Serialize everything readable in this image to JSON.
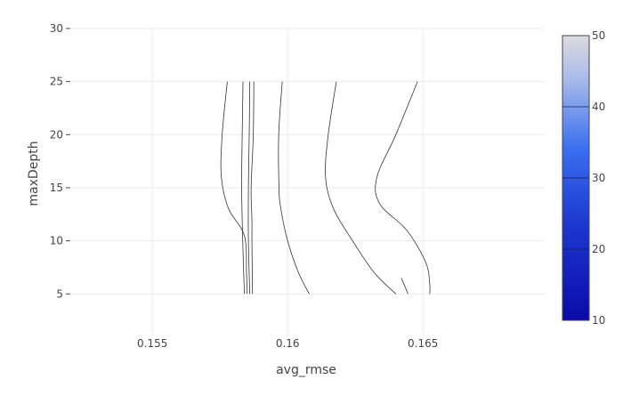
{
  "chart_data": {
    "type": "contour",
    "xlabel": "avg_rmse",
    "ylabel": "maxDepth",
    "xlim": [
      0.152,
      0.1695
    ],
    "ylim": [
      1,
      30
    ],
    "x_ticks": [
      {
        "value": 0.155,
        "label": "0.155"
      },
      {
        "value": 0.16,
        "label": "0.16"
      },
      {
        "value": 0.165,
        "label": "0.165"
      }
    ],
    "y_ticks": [
      {
        "value": 5,
        "label": "5"
      },
      {
        "value": 10,
        "label": "10"
      },
      {
        "value": 15,
        "label": "15"
      },
      {
        "value": 20,
        "label": "20"
      },
      {
        "value": 25,
        "label": "25"
      },
      {
        "value": 30,
        "label": "30"
      }
    ],
    "grid": true,
    "colorbar": {
      "min": 10,
      "max": 50,
      "ticks": [
        10,
        20,
        30,
        40,
        50
      ],
      "colorscale": [
        {
          "stop": 0.0,
          "color": "#0a0aa8"
        },
        {
          "stop": 0.35,
          "color": "#1e3ad0"
        },
        {
          "stop": 0.6,
          "color": "#3a6ef0"
        },
        {
          "stop": 0.85,
          "color": "#a9bbea"
        },
        {
          "stop": 1.0,
          "color": "#dcdcdc"
        }
      ],
      "placement": "right"
    },
    "contours": [
      {
        "points": [
          [
            0.15777,
            25
          ],
          [
            0.15758,
            20
          ],
          [
            0.15755,
            16
          ],
          [
            0.15782,
            13
          ],
          [
            0.1584,
            10.5
          ],
          [
            0.15848,
            7
          ],
          [
            0.1585,
            5
          ]
        ]
      },
      {
        "points": [
          [
            0.15835,
            25
          ],
          [
            0.15832,
            20
          ],
          [
            0.1583,
            15
          ],
          [
            0.15834,
            10
          ],
          [
            0.1584,
            5
          ]
        ]
      },
      {
        "points": [
          [
            0.1586,
            25
          ],
          [
            0.15858,
            20
          ],
          [
            0.15855,
            15
          ],
          [
            0.15855,
            10
          ],
          [
            0.1586,
            5
          ]
        ]
      },
      {
        "points": [
          [
            0.15875,
            25
          ],
          [
            0.15873,
            20
          ],
          [
            0.15865,
            15
          ],
          [
            0.15868,
            12
          ],
          [
            0.15868,
            10
          ],
          [
            0.1587,
            5
          ]
        ]
      },
      {
        "points": [
          [
            0.1598,
            25
          ],
          [
            0.15967,
            20
          ],
          [
            0.15968,
            15
          ],
          [
            0.15975,
            13
          ],
          [
            0.16,
            10
          ],
          [
            0.1604,
            7
          ],
          [
            0.1608,
            5
          ]
        ]
      },
      {
        "points": [
          [
            0.1618,
            25
          ],
          [
            0.1615,
            20
          ],
          [
            0.1614,
            16
          ],
          [
            0.1617,
            13
          ],
          [
            0.1624,
            10
          ],
          [
            0.1632,
            7
          ],
          [
            0.164,
            5
          ]
        ]
      },
      {
        "points": [
          [
            0.1648,
            25
          ],
          [
            0.164,
            20
          ],
          [
            0.1633,
            16
          ],
          [
            0.1634,
            13.5
          ],
          [
            0.1644,
            11
          ],
          [
            0.1651,
            8
          ],
          [
            0.16525,
            6
          ],
          [
            0.16525,
            5
          ]
        ]
      },
      {
        "points": [
          [
            0.16445,
            5
          ],
          [
            0.1642,
            6.5
          ]
        ]
      }
    ]
  }
}
